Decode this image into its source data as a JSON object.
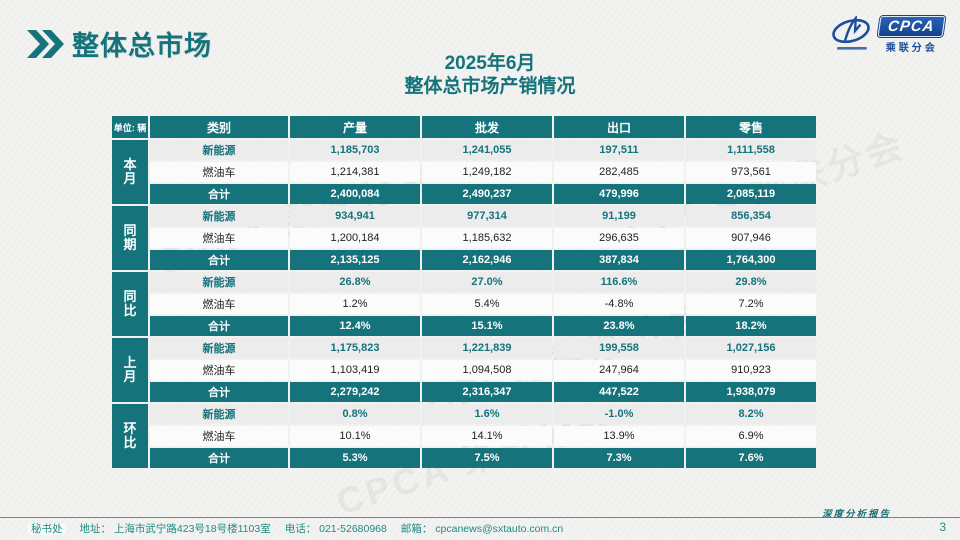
{
  "header": {
    "title": "整体总市场"
  },
  "logo": {
    "text": "CPCA",
    "subtext": "乘联分会"
  },
  "subtitle": {
    "line1": "2025年6月",
    "line2": "整体总市场产销情况"
  },
  "table": {
    "unit_label": "单位: 辆",
    "columns": [
      "类别",
      "产量",
      "批发",
      "出口",
      "零售"
    ],
    "groups": [
      {
        "label": "本月",
        "rows": [
          {
            "category": "新能源",
            "style": "nev",
            "values": [
              "1,185,703",
              "1,241,055",
              "197,511",
              "1,111,558"
            ]
          },
          {
            "category": "燃油车",
            "style": "fuel",
            "values": [
              "1,214,381",
              "1,249,182",
              "282,485",
              "973,561"
            ]
          },
          {
            "category": "合计",
            "style": "total",
            "values": [
              "2,400,084",
              "2,490,237",
              "479,996",
              "2,085,119"
            ]
          }
        ]
      },
      {
        "label": "同期",
        "rows": [
          {
            "category": "新能源",
            "style": "nev",
            "values": [
              "934,941",
              "977,314",
              "91,199",
              "856,354"
            ]
          },
          {
            "category": "燃油车",
            "style": "fuel",
            "values": [
              "1,200,184",
              "1,185,632",
              "296,635",
              "907,946"
            ]
          },
          {
            "category": "合计",
            "style": "total",
            "values": [
              "2,135,125",
              "2,162,946",
              "387,834",
              "1,764,300"
            ]
          }
        ]
      },
      {
        "label": "同比",
        "rows": [
          {
            "category": "新能源",
            "style": "nev",
            "values": [
              "26.8%",
              "27.0%",
              "116.6%",
              "29.8%"
            ]
          },
          {
            "category": "燃油车",
            "style": "fuel",
            "values": [
              "1.2%",
              "5.4%",
              "-4.8%",
              "7.2%"
            ]
          },
          {
            "category": "合计",
            "style": "total",
            "values": [
              "12.4%",
              "15.1%",
              "23.8%",
              "18.2%"
            ]
          }
        ]
      },
      {
        "label": "上月",
        "rows": [
          {
            "category": "新能源",
            "style": "nev",
            "values": [
              "1,175,823",
              "1,221,839",
              "199,558",
              "1,027,156"
            ]
          },
          {
            "category": "燃油车",
            "style": "fuel",
            "values": [
              "1,103,419",
              "1,094,508",
              "247,964",
              "910,923"
            ]
          },
          {
            "category": "合计",
            "style": "total",
            "values": [
              "2,279,242",
              "2,316,347",
              "447,522",
              "1,938,079"
            ]
          }
        ]
      },
      {
        "label": "环比",
        "rows": [
          {
            "category": "新能源",
            "style": "nev",
            "values": [
              "0.8%",
              "1.6%",
              "-1.0%",
              "8.2%"
            ]
          },
          {
            "category": "燃油车",
            "style": "fuel",
            "values": [
              "10.1%",
              "14.1%",
              "13.9%",
              "6.9%"
            ]
          },
          {
            "category": "合计",
            "style": "total",
            "values": [
              "5.3%",
              "7.5%",
              "7.3%",
              "7.6%"
            ]
          }
        ]
      }
    ]
  },
  "watermark": "CPCA 乘联分会",
  "footer": {
    "left_parts": [
      "秘书处",
      "地址： 上海市武宁路423号18号楼1103室",
      "电话： 021-52680968",
      "邮箱： cpcanews@sxtauto.com.cn"
    ],
    "report_label": "深度分析报告",
    "page_number": "3"
  },
  "colors": {
    "teal": "#15737c",
    "teal-dark": "#116a72",
    "logo-blue": "#1b4e9b"
  },
  "chart_data": {
    "type": "table",
    "title": "2025年6月 整体总市场产销情况",
    "unit": "辆",
    "columns": [
      "产量",
      "批发",
      "出口",
      "零售"
    ],
    "row_groups": [
      {
        "group": "本月",
        "rows": {
          "新能源": [
            1185703,
            1241055,
            197511,
            1111558
          ],
          "燃油车": [
            1214381,
            1249182,
            282485,
            973561
          ],
          "合计": [
            2400084,
            2490237,
            479996,
            2085119
          ]
        }
      },
      {
        "group": "同期",
        "rows": {
          "新能源": [
            934941,
            977314,
            91199,
            856354
          ],
          "燃油车": [
            1200184,
            1185632,
            296635,
            907946
          ],
          "合计": [
            2135125,
            2162946,
            387834,
            1764300
          ]
        }
      },
      {
        "group": "同比",
        "rows": {
          "新能源": [
            "26.8%",
            "27.0%",
            "116.6%",
            "29.8%"
          ],
          "燃油车": [
            "1.2%",
            "5.4%",
            "-4.8%",
            "7.2%"
          ],
          "合计": [
            "12.4%",
            "15.1%",
            "23.8%",
            "18.2%"
          ]
        }
      },
      {
        "group": "上月",
        "rows": {
          "新能源": [
            1175823,
            1221839,
            199558,
            1027156
          ],
          "燃油车": [
            1103419,
            1094508,
            247964,
            910923
          ],
          "合计": [
            2279242,
            2316347,
            447522,
            1938079
          ]
        }
      },
      {
        "group": "环比",
        "rows": {
          "新能源": [
            "0.8%",
            "1.6%",
            "-1.0%",
            "8.2%"
          ],
          "燃油车": [
            "10.1%",
            "14.1%",
            "13.9%",
            "6.9%"
          ],
          "合计": [
            "5.3%",
            "7.5%",
            "7.3%",
            "7.6%"
          ]
        }
      }
    ]
  }
}
